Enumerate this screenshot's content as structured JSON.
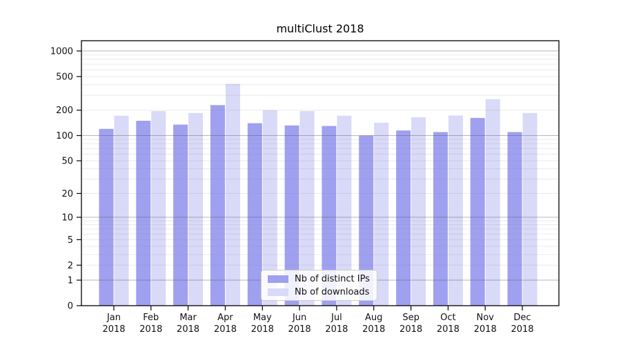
{
  "chart_data": {
    "type": "bar",
    "title": "multiClust 2018",
    "categories": [
      "Jan 2018",
      "Feb 2018",
      "Mar 2018",
      "Apr 2018",
      "May 2018",
      "Jun 2018",
      "Jul 2018",
      "Aug 2018",
      "Sep 2018",
      "Oct 2018",
      "Nov 2018",
      "Dec 2018"
    ],
    "series": [
      {
        "name": "Nb of distinct IPs",
        "color": "#a0a0f0",
        "values": [
          120,
          150,
          135,
          230,
          140,
          132,
          130,
          100,
          115,
          110,
          162,
          110
        ]
      },
      {
        "name": "Nb of downloads",
        "color": "#d9d9f8",
        "values": [
          172,
          195,
          185,
          410,
          200,
          195,
          172,
          142,
          165,
          173,
          270,
          185
        ]
      }
    ],
    "xlabel": "",
    "ylabel": "",
    "y_scale": "log1p",
    "y_ticks": [
      0,
      1,
      2,
      5,
      10,
      20,
      50,
      100,
      200,
      500,
      1000
    ],
    "ylim": [
      0,
      1350
    ],
    "grid": "horizontal, minor gridlines at 2-9 per decade, major at 1/10/100/1000",
    "legend_position": "lower center"
  },
  "legend": {
    "items": [
      {
        "label": "Nb of distinct IPs",
        "color": "#a0a0f0"
      },
      {
        "label": "Nb of downloads",
        "color": "#d9d9f8"
      }
    ]
  },
  "colors": {
    "bar_dark": "#a0a0f0",
    "bar_light": "#d9d9f8",
    "spine": "#000000",
    "tick_label": "#111111",
    "grid_major": "rgba(80,80,80,0.42)",
    "grid_minor": "rgba(140,140,140,0.18)"
  }
}
